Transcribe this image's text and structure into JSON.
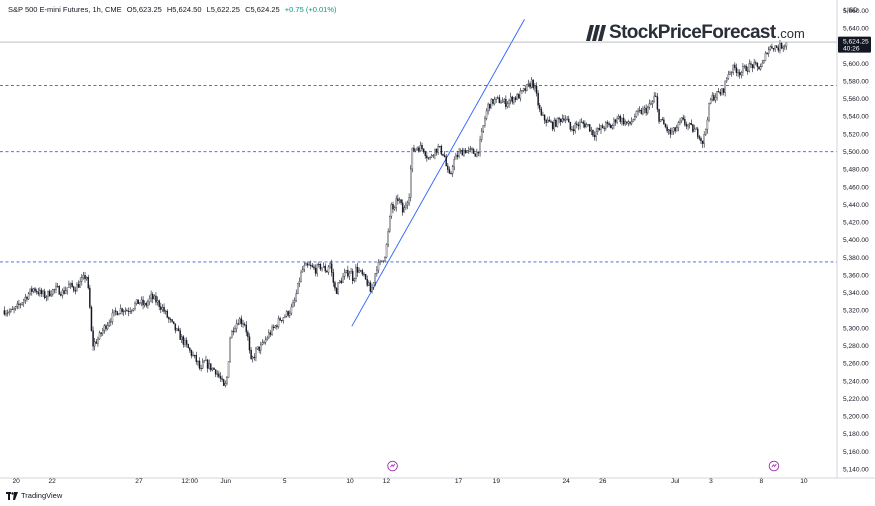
{
  "header": {
    "title": "S&P 500 E-mini Futures, 1h, CME",
    "open": "O5,623.25",
    "high": "H5,624.50",
    "low": "L5,622.25",
    "close": "C5,624.25",
    "change": "+0.75 (+0.01%)"
  },
  "logo": {
    "name": "StockPriceForecast",
    "domain": ".com",
    "icon": "stock-price-forecast-logo"
  },
  "footer": {
    "brand": "TradingView",
    "icon": "tradingview-logo"
  },
  "colors": {
    "candle": "#131722",
    "trendline": "#2962ff",
    "hline": "#3d5fd9",
    "price_tag": "#131722",
    "event_icon": "#9c27b0"
  },
  "chart_data": {
    "type": "candlestick",
    "currency": "USD",
    "y_ticks": [
      "5,660.00",
      "5,640.00",
      "5,620.00",
      "5,600.00",
      "5,580.00",
      "5,560.00",
      "5,540.00",
      "5,520.00",
      "5,500.00",
      "5,480.00",
      "5,460.00",
      "5,440.00",
      "5,420.00",
      "5,400.00",
      "5,380.00",
      "5,360.00",
      "5,340.00",
      "5,320.00",
      "5,300.00",
      "5,280.00",
      "5,260.00",
      "5,240.00",
      "5,220.00",
      "5,200.00",
      "5,180.00",
      "5,160.00",
      "5,140.00"
    ],
    "ylim": [
      5130,
      5672
    ],
    "x_ticks": [
      {
        "label": "20",
        "t": 0.0
      },
      {
        "label": "22",
        "t": 12.3
      },
      {
        "label": "27",
        "t": 41.9
      },
      {
        "label": "12:00",
        "t": 59.2
      },
      {
        "label": "Jun",
        "t": 71.5
      },
      {
        "label": "5",
        "t": 91.6
      },
      {
        "label": "10",
        "t": 113.9
      },
      {
        "label": "12",
        "t": 126.3
      },
      {
        "label": "17",
        "t": 150.9
      },
      {
        "label": "19",
        "t": 163.8
      },
      {
        "label": "24",
        "t": 187.6
      },
      {
        "label": "26",
        "t": 200.1
      },
      {
        "label": "Jul",
        "t": 224.8
      },
      {
        "label": "3",
        "t": 237.0
      },
      {
        "label": "8",
        "t": 254.2
      },
      {
        "label": "10",
        "t": 268.7
      }
    ],
    "xlim": [
      -5.5,
      280
    ],
    "current_price": {
      "value": 5624.25,
      "label": "5,624.25",
      "countdown": "40:26"
    },
    "horizontal_levels": [
      5575,
      5500,
      5375
    ],
    "trendline": {
      "from": [
        114.5,
        5302
      ],
      "to": [
        173.4,
        5650
      ]
    },
    "event_markers": [
      128.4,
      258.5
    ],
    "price_path": [
      [
        -4,
        5320
      ],
      [
        -2,
        5318
      ],
      [
        0,
        5322
      ],
      [
        2,
        5330
      ],
      [
        4,
        5338
      ],
      [
        6,
        5345
      ],
      [
        8,
        5340
      ],
      [
        10,
        5336
      ],
      [
        12,
        5342
      ],
      [
        14,
        5344
      ],
      [
        16,
        5340
      ],
      [
        18,
        5348
      ],
      [
        20,
        5345
      ],
      [
        22,
        5352
      ],
      [
        24,
        5360
      ],
      [
        25,
        5330
      ],
      [
        26,
        5280
      ],
      [
        28,
        5288
      ],
      [
        30,
        5300
      ],
      [
        32,
        5310
      ],
      [
        34,
        5318
      ],
      [
        36,
        5322
      ],
      [
        38,
        5320
      ],
      [
        40,
        5325
      ],
      [
        42,
        5330
      ],
      [
        44,
        5325
      ],
      [
        46,
        5335
      ],
      [
        48,
        5330
      ],
      [
        50,
        5322
      ],
      [
        52,
        5310
      ],
      [
        54,
        5300
      ],
      [
        56,
        5290
      ],
      [
        58,
        5280
      ],
      [
        60,
        5270
      ],
      [
        62,
        5260
      ],
      [
        63,
        5250
      ],
      [
        64,
        5262
      ],
      [
        66,
        5256
      ],
      [
        68,
        5252
      ],
      [
        70,
        5240
      ],
      [
        71,
        5230
      ],
      [
        72,
        5245
      ],
      [
        73,
        5290
      ],
      [
        74,
        5300
      ],
      [
        76,
        5310
      ],
      [
        78,
        5305
      ],
      [
        79,
        5290
      ],
      [
        80,
        5260
      ],
      [
        82,
        5275
      ],
      [
        84,
        5280
      ],
      [
        86,
        5292
      ],
      [
        88,
        5300
      ],
      [
        90,
        5310
      ],
      [
        92,
        5315
      ],
      [
        94,
        5322
      ],
      [
        95,
        5330
      ],
      [
        96,
        5345
      ],
      [
        97,
        5360
      ],
      [
        98,
        5368
      ],
      [
        100,
        5370
      ],
      [
        102,
        5366
      ],
      [
        104,
        5370
      ],
      [
        106,
        5365
      ],
      [
        107,
        5375
      ],
      [
        108,
        5355
      ],
      [
        109,
        5340
      ],
      [
        110,
        5350
      ],
      [
        112,
        5360
      ],
      [
        114,
        5365
      ],
      [
        115,
        5355
      ],
      [
        116,
        5368
      ],
      [
        118,
        5360
      ],
      [
        120,
        5350
      ],
      [
        121,
        5340
      ],
      [
        122,
        5355
      ],
      [
        123,
        5370
      ],
      [
        124,
        5372
      ],
      [
        126,
        5385
      ],
      [
        127,
        5410
      ],
      [
        128,
        5440
      ],
      [
        129,
        5432
      ],
      [
        130,
        5448
      ],
      [
        131,
        5442
      ],
      [
        132,
        5430
      ],
      [
        133,
        5442
      ],
      [
        134,
        5450
      ],
      [
        135,
        5500
      ],
      [
        137,
        5506
      ],
      [
        139,
        5503
      ],
      [
        141,
        5490
      ],
      [
        142,
        5500
      ],
      [
        144,
        5504
      ],
      [
        146,
        5497
      ],
      [
        147,
        5478
      ],
      [
        148,
        5470
      ],
      [
        149,
        5488
      ],
      [
        151,
        5498
      ],
      [
        153,
        5502
      ],
      [
        155,
        5500
      ],
      [
        157,
        5498
      ],
      [
        158,
        5505
      ],
      [
        160,
        5540
      ],
      [
        161,
        5552
      ],
      [
        163,
        5558
      ],
      [
        165,
        5558
      ],
      [
        167,
        5555
      ],
      [
        169,
        5560
      ],
      [
        171,
        5562
      ],
      [
        173,
        5568
      ],
      [
        175,
        5575
      ],
      [
        176,
        5580
      ],
      [
        177,
        5570
      ],
      [
        178,
        5555
      ],
      [
        179,
        5540
      ],
      [
        181,
        5535
      ],
      [
        183,
        5530
      ],
      [
        185,
        5535
      ],
      [
        187,
        5540
      ],
      [
        188,
        5535
      ],
      [
        189,
        5525
      ],
      [
        191,
        5530
      ],
      [
        193,
        5532
      ],
      [
        195,
        5530
      ],
      [
        197,
        5520
      ],
      [
        199,
        5525
      ],
      [
        201,
        5530
      ],
      [
        203,
        5528
      ],
      [
        205,
        5540
      ],
      [
        207,
        5535
      ],
      [
        209,
        5530
      ],
      [
        211,
        5540
      ],
      [
        213,
        5545
      ],
      [
        215,
        5548
      ],
      [
        217,
        5555
      ],
      [
        218,
        5565
      ],
      [
        219,
        5540
      ],
      [
        221,
        5530
      ],
      [
        223,
        5520
      ],
      [
        225,
        5525
      ],
      [
        227,
        5535
      ],
      [
        229,
        5530
      ],
      [
        231,
        5525
      ],
      [
        233,
        5520
      ],
      [
        234,
        5510
      ],
      [
        235,
        5520
      ],
      [
        236,
        5545
      ],
      [
        237,
        5560
      ],
      [
        239,
        5565
      ],
      [
        241,
        5568
      ],
      [
        243,
        5590
      ],
      [
        245,
        5595
      ],
      [
        247,
        5590
      ],
      [
        249,
        5595
      ],
      [
        251,
        5598
      ],
      [
        253,
        5595
      ],
      [
        255,
        5600
      ],
      [
        256,
        5615
      ],
      [
        258,
        5620
      ],
      [
        260,
        5618
      ],
      [
        262,
        5622
      ],
      [
        263,
        5624
      ]
    ]
  }
}
